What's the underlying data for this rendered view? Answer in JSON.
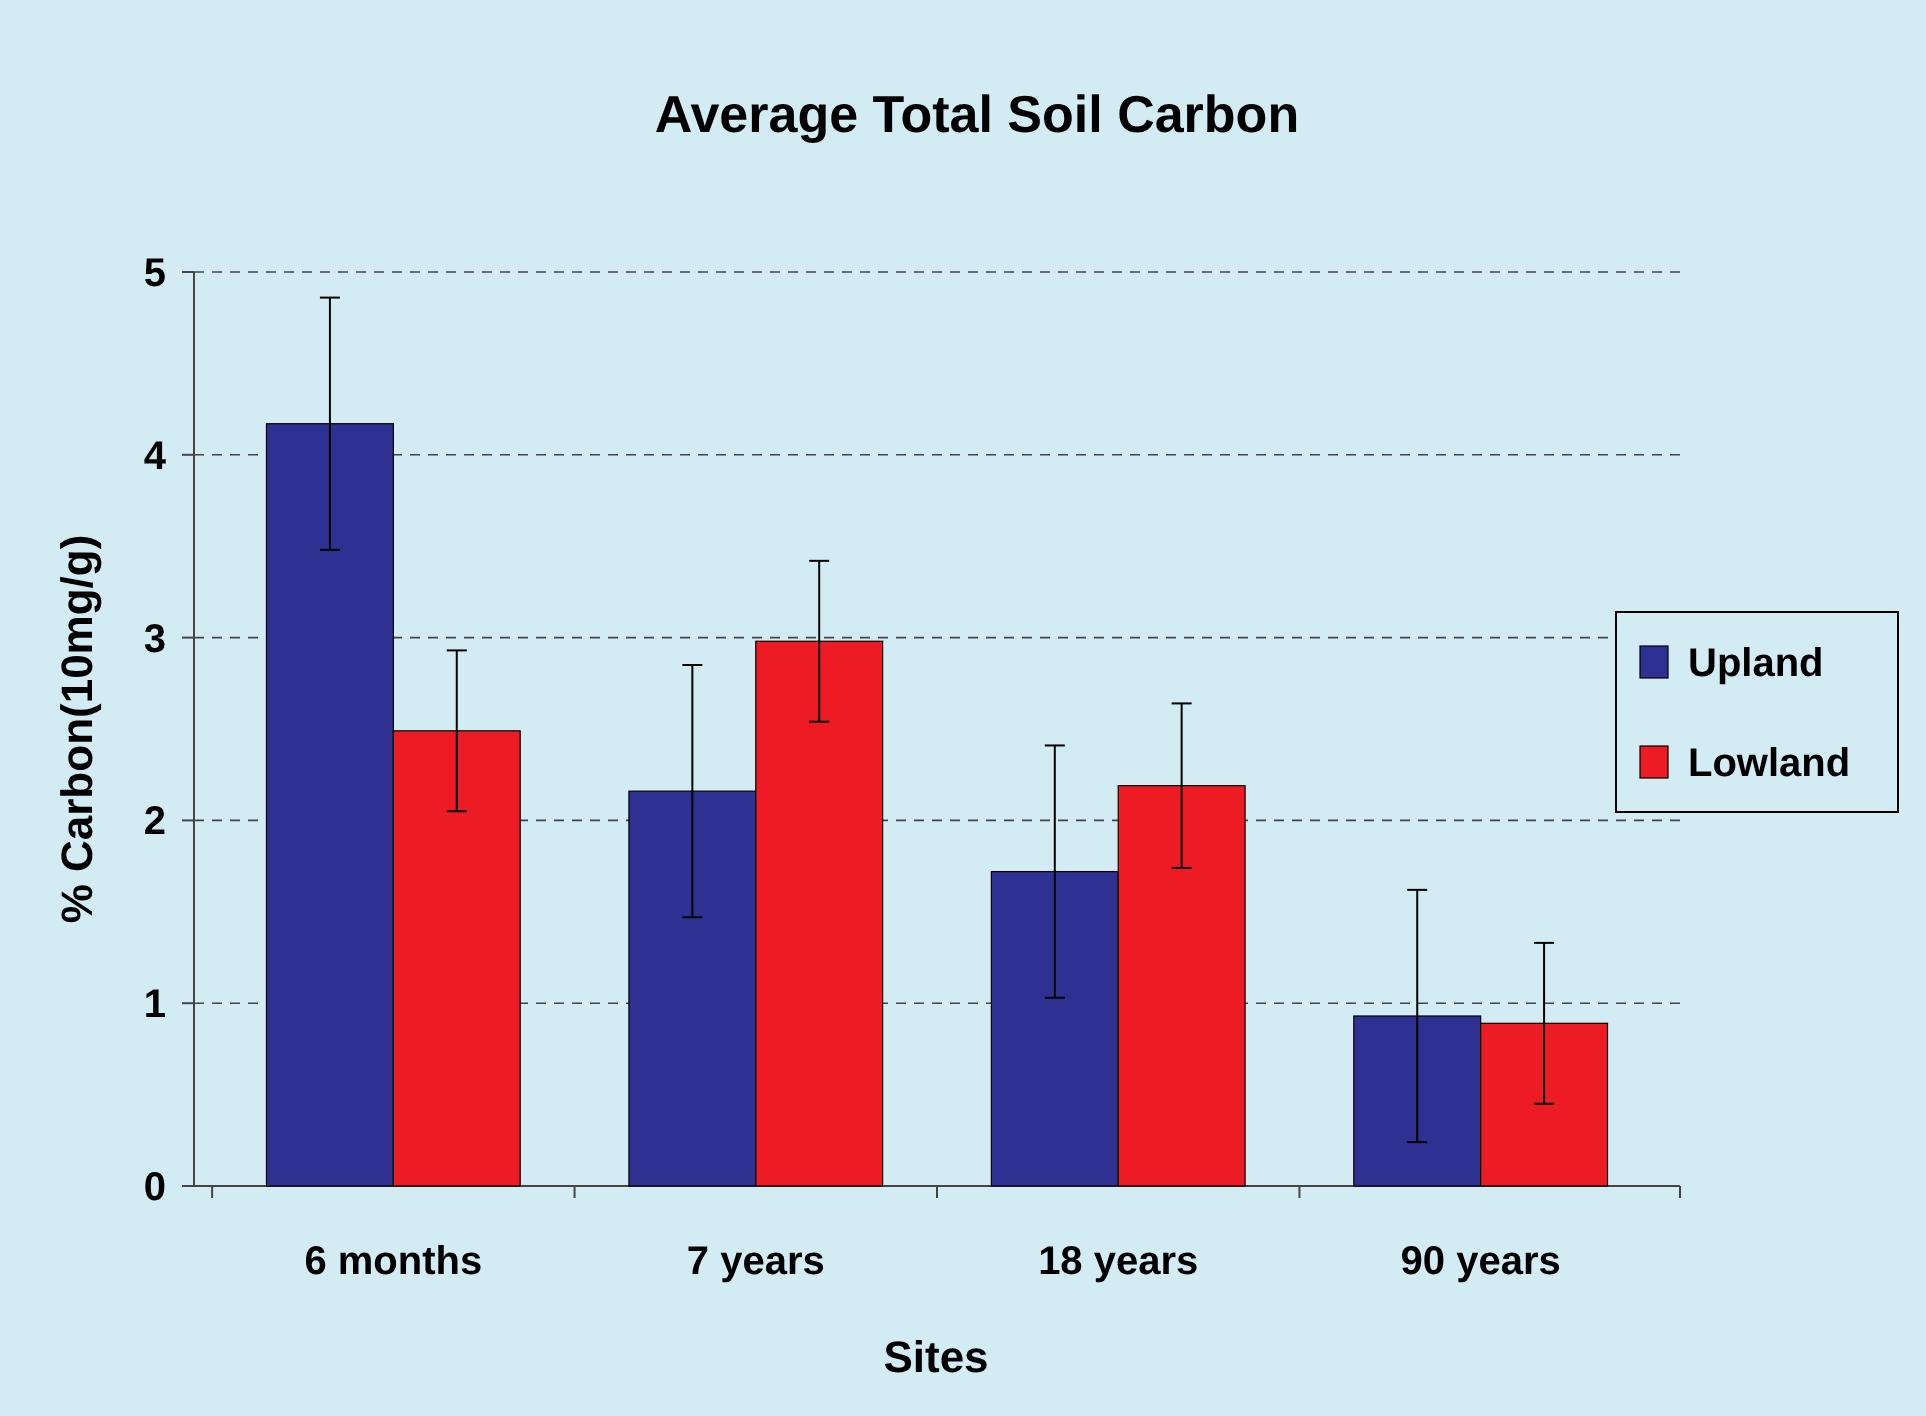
{
  "chart_data": {
    "type": "bar",
    "title": "Average Total Soil Carbon",
    "xlabel": "Sites",
    "ylabel": "% Carbon(10mg/g)",
    "categories": [
      "6 months",
      "7 years",
      "18 years",
      "90 years"
    ],
    "series": [
      {
        "name": "Upland",
        "color": "#2e3192",
        "values": [
          4.17,
          2.16,
          1.72,
          0.93
        ],
        "errors": [
          0.69,
          0.69,
          0.69,
          0.69
        ]
      },
      {
        "name": "Lowland",
        "color": "#ed1c24",
        "values": [
          2.49,
          2.98,
          2.19,
          0.89
        ],
        "errors": [
          0.44,
          0.44,
          0.45,
          0.44
        ]
      }
    ],
    "ylim": [
      0,
      5
    ],
    "yticks": [
      0,
      1,
      2,
      3,
      4,
      5
    ],
    "grid": "y",
    "legend": "right"
  }
}
